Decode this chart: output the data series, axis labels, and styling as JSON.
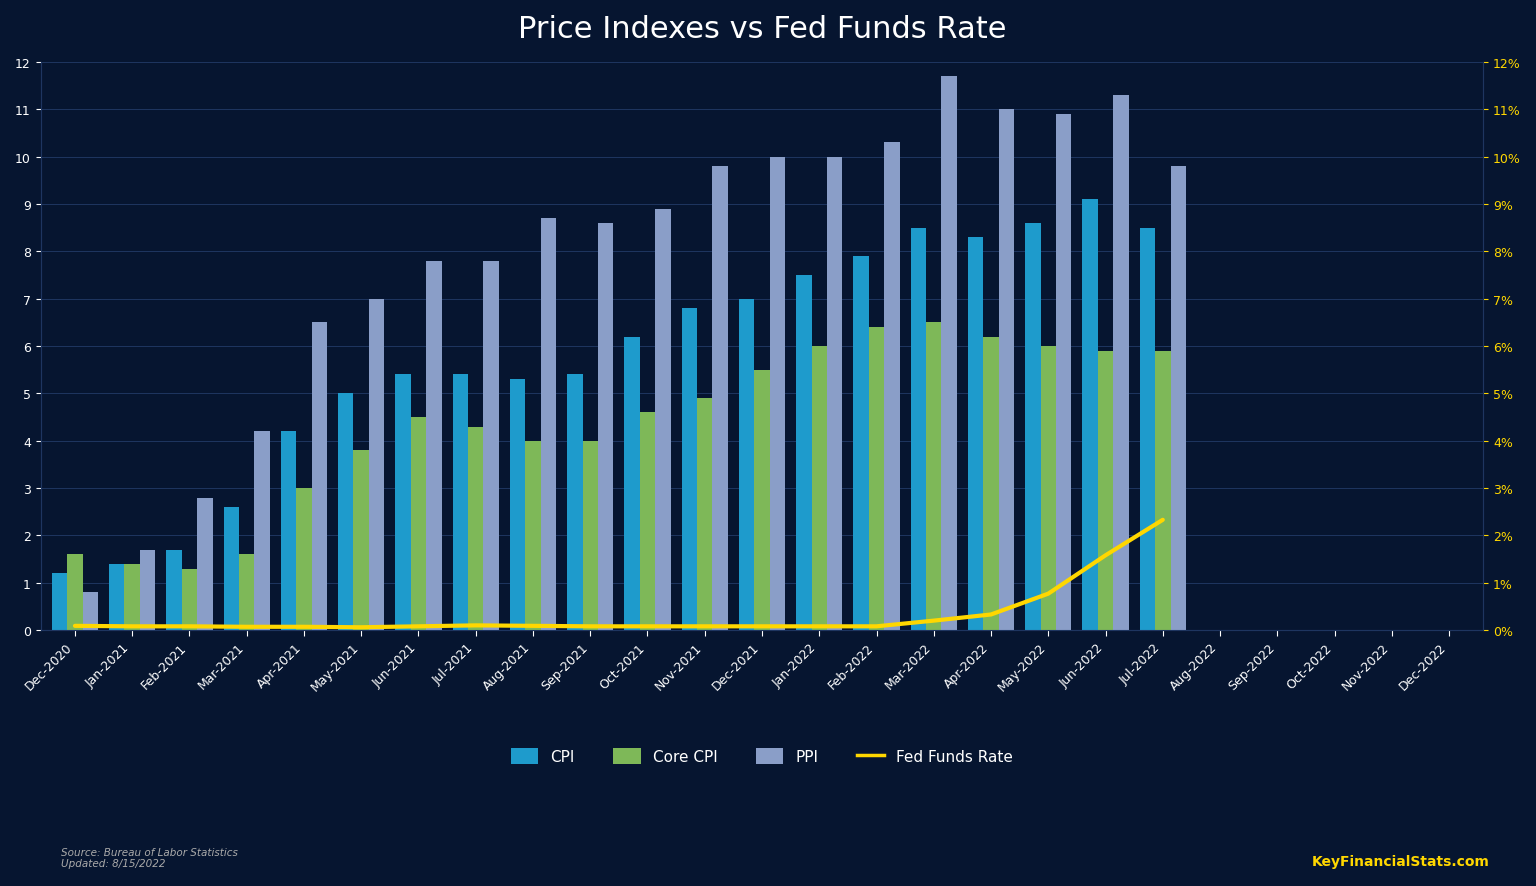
{
  "title": "Price Indexes vs Fed Funds Rate",
  "categories": [
    "Dec-2020",
    "Jan-2021",
    "Feb-2021",
    "Mar-2021",
    "Apr-2021",
    "May-2021",
    "Jun-2021",
    "Jul-2021",
    "Aug-2021",
    "Sep-2021",
    "Oct-2021",
    "Nov-2021",
    "Dec-2021",
    "Jan-2022",
    "Feb-2022",
    "Mar-2022",
    "Apr-2022",
    "May-2022",
    "Jun-2022",
    "Jul-2022",
    "Aug-2022",
    "Sep-2022",
    "Oct-2022",
    "Nov-2022",
    "Dec-2022"
  ],
  "cpi": [
    1.2,
    1.4,
    1.7,
    2.6,
    4.2,
    5.0,
    5.4,
    5.4,
    5.3,
    5.4,
    6.2,
    6.8,
    7.0,
    7.5,
    7.9,
    8.5,
    8.3,
    8.6,
    9.1,
    8.5,
    null,
    null,
    null,
    null,
    null
  ],
  "core_cpi": [
    1.6,
    1.4,
    1.3,
    1.6,
    3.0,
    3.8,
    4.5,
    4.3,
    4.0,
    4.0,
    4.6,
    4.9,
    5.5,
    6.0,
    6.4,
    6.5,
    6.2,
    6.0,
    5.9,
    5.9,
    null,
    null,
    null,
    null,
    null
  ],
  "ppi": [
    0.8,
    1.7,
    2.8,
    4.2,
    6.5,
    7.0,
    7.8,
    7.8,
    8.7,
    8.6,
    8.9,
    9.8,
    10.0,
    10.0,
    10.3,
    11.7,
    11.0,
    10.9,
    11.3,
    9.8,
    null,
    null,
    null,
    null,
    null
  ],
  "fed_funds": [
    0.09,
    0.08,
    0.08,
    0.07,
    0.07,
    0.06,
    0.08,
    0.1,
    0.09,
    0.08,
    0.08,
    0.08,
    0.08,
    0.08,
    0.08,
    0.2,
    0.33,
    0.77,
    1.58,
    2.33,
    null,
    null,
    null,
    null,
    null
  ],
  "cpi_color": "#1E9BCC",
  "core_cpi_color": "#7EB858",
  "ppi_color": "#8A9EC8",
  "fed_funds_color": "#FFD700",
  "background_color": "#061530",
  "grid_color": "#1E3560",
  "text_color": "#FFFFFF",
  "right_axis_color": "#FFD700",
  "title_fontsize": 22,
  "axis_fontsize": 9,
  "ylim": [
    0,
    12
  ],
  "source_text": "Source: Bureau of Labor Statistics\nUpdated: 8/15/2022",
  "watermark_text": "KeyFinancialStats.com"
}
